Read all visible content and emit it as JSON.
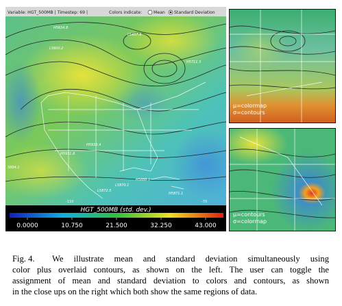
{
  "header": {
    "variable": "Variable: HGT_500MB | Timestep: 69 |",
    "colors_indicate": "Colors indicate:",
    "options": [
      "Mean",
      "Standard Deviation"
    ],
    "selected": 1
  },
  "map": {
    "contour_labels": [
      "H5634.8",
      "L5437.9",
      "L5600.2",
      "H5711.3",
      "H5933.4",
      "H5931.8",
      "5884.1",
      "H5888.1",
      "L5870.1",
      "L5872.5",
      "H5871.1"
    ],
    "longitude_labels": [
      "-110",
      "-70"
    ]
  },
  "colorbar": {
    "title": "HGT_500MB (std. dev.)",
    "ticks": [
      {
        "value": 0,
        "label": "0.0000"
      },
      {
        "value": 10.75,
        "label": "10.750"
      },
      {
        "value": 21.5,
        "label": "21.500"
      },
      {
        "value": 32.25,
        "label": "32.250"
      },
      {
        "value": 43,
        "label": "43.000"
      }
    ]
  },
  "closeups": [
    {
      "lines": [
        "μ=colormap",
        "σ=contours"
      ]
    },
    {
      "lines": [
        "μ=contours",
        "σ=colormap"
      ]
    }
  ],
  "caption": {
    "label": "Fig. 4.",
    "lines": [
      "We illustrate mean and standard deviation simultaneously using",
      "color plus overlaid contours, as shown on the left. The user can toggle the",
      "assignment of mean and standard deviation to colors and contours, as shown",
      "in the close ups on the right which both show the same regions of data."
    ]
  }
}
